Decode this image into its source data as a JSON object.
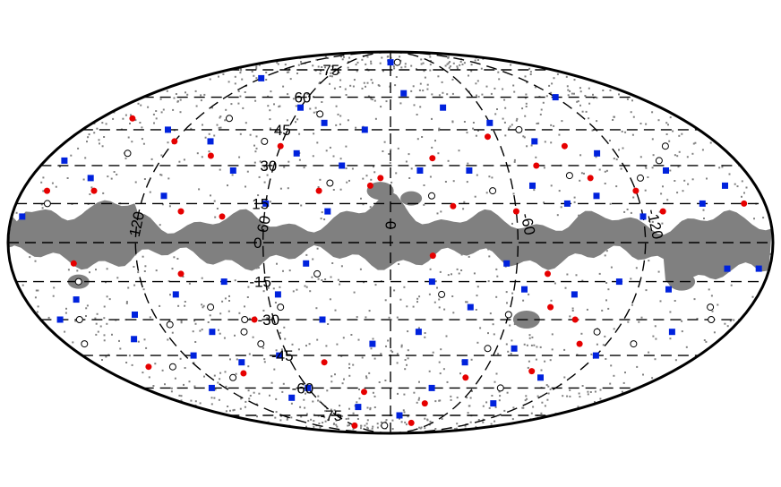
{
  "chart_data": {
    "type": "scatter",
    "projection": "mollweide",
    "coordinate_system": "galactic",
    "title": "",
    "longitude_labels": [
      "120",
      "60",
      "0",
      "-60",
      "-120"
    ],
    "latitude_labels": [
      "75",
      "60",
      "45",
      "30",
      "15",
      "0",
      "-15",
      "-30",
      "-45",
      "-60",
      "-75"
    ],
    "graticule": {
      "lon_step_deg": 60,
      "lat_step_deg": 15,
      "style": "dashed"
    },
    "mask": {
      "description": "galactic plane and masked sky regions",
      "color": "#808080"
    },
    "colors": {
      "mask": "#808080",
      "series_a": "#e60000",
      "series_b": "#0022dd",
      "series_c": "#000000"
    },
    "series": [
      {
        "marker": "filled-circle",
        "color": "#e60000",
        "points": [
          {
            "l": 160,
            "b": 50
          },
          {
            "l": 120,
            "b": 40
          },
          {
            "l": 95,
            "b": 34
          },
          {
            "l": 60,
            "b": 38
          },
          {
            "l": -22,
            "b": 33
          },
          {
            "l": -75,
            "b": 30
          },
          {
            "l": -100,
            "b": 25
          },
          {
            "l": -120,
            "b": 20
          },
          {
            "l": 35,
            "b": 20
          },
          {
            "l": 10,
            "b": 22
          },
          {
            "l": -30,
            "b": 14
          },
          {
            "l": -60,
            "b": 12
          },
          {
            "l": -130,
            "b": 12
          },
          {
            "l": 168,
            "b": 20
          },
          {
            "l": 145,
            "b": 20
          },
          {
            "l": 100,
            "b": 12
          },
          {
            "l": 80,
            "b": 10
          },
          {
            "l": 150,
            "b": -8
          },
          {
            "l": 100,
            "b": -12
          },
          {
            "l": -20,
            "b": -5
          },
          {
            "l": -75,
            "b": -12
          },
          {
            "l": -80,
            "b": -25
          },
          {
            "l": -95,
            "b": -30
          },
          {
            "l": -105,
            "b": -40
          },
          {
            "l": -90,
            "b": -52
          },
          {
            "l": -50,
            "b": -55
          },
          {
            "l": -30,
            "b": -68
          },
          {
            "l": 20,
            "b": -62
          },
          {
            "l": 40,
            "b": -48
          },
          {
            "l": 60,
            "b": -82
          },
          {
            "l": 95,
            "b": -53
          },
          {
            "l": 150,
            "b": -50
          },
          {
            "l": -30,
            "b": -80
          },
          {
            "l": 5,
            "b": 25
          },
          {
            "l": -170,
            "b": 15
          },
          {
            "l": -95,
            "b": 38
          },
          {
            "l": 70,
            "b": -30
          },
          {
            "l": -55,
            "b": 42
          }
        ]
      },
      {
        "marker": "filled-square",
        "color": "#0022dd",
        "points": [
          {
            "l": 120,
            "b": 70
          },
          {
            "l": 60,
            "b": 55
          },
          {
            "l": 40,
            "b": 48
          },
          {
            "l": 15,
            "b": 45
          },
          {
            "l": -10,
            "b": 62
          },
          {
            "l": -35,
            "b": 55
          },
          {
            "l": -60,
            "b": 48
          },
          {
            "l": -80,
            "b": 40
          },
          {
            "l": -110,
            "b": 35
          },
          {
            "l": -140,
            "b": 28
          },
          {
            "l": -165,
            "b": 22
          },
          {
            "l": 170,
            "b": 32
          },
          {
            "l": 130,
            "b": 45
          },
          {
            "l": 100,
            "b": 40
          },
          {
            "l": 80,
            "b": 28
          },
          {
            "l": 50,
            "b": 35
          },
          {
            "l": 25,
            "b": 30
          },
          {
            "l": -15,
            "b": 28
          },
          {
            "l": -40,
            "b": 28
          },
          {
            "l": -70,
            "b": 22
          },
          {
            "l": -100,
            "b": 18
          },
          {
            "l": -150,
            "b": 15
          },
          {
            "l": 150,
            "b": 25
          },
          {
            "l": 110,
            "b": 18
          },
          {
            "l": 60,
            "b": 15
          },
          {
            "l": 30,
            "b": 12
          },
          {
            "l": -85,
            "b": 15
          },
          {
            "l": -120,
            "b": 10
          },
          {
            "l": -160,
            "b": -10
          },
          {
            "l": -135,
            "b": -18
          },
          {
            "l": -110,
            "b": -15
          },
          {
            "l": -90,
            "b": -20
          },
          {
            "l": -65,
            "b": -18
          },
          {
            "l": -40,
            "b": -25
          },
          {
            "l": -15,
            "b": -35
          },
          {
            "l": 10,
            "b": -40
          },
          {
            "l": 35,
            "b": -30
          },
          {
            "l": 55,
            "b": -20
          },
          {
            "l": 80,
            "b": -15
          },
          {
            "l": 105,
            "b": -20
          },
          {
            "l": 130,
            "b": -28
          },
          {
            "l": 155,
            "b": -22
          },
          {
            "l": 170,
            "b": -30
          },
          {
            "l": 140,
            "b": -38
          },
          {
            "l": 115,
            "b": -45
          },
          {
            "l": 90,
            "b": -48
          },
          {
            "l": 65,
            "b": -45
          },
          {
            "l": -45,
            "b": -48
          },
          {
            "l": -70,
            "b": -42
          },
          {
            "l": -100,
            "b": -55
          },
          {
            "l": -120,
            "b": -45
          },
          {
            "l": -10,
            "b": -75
          },
          {
            "l": 30,
            "b": -70
          },
          {
            "l": 80,
            "b": -65
          },
          {
            "l": 130,
            "b": -60
          },
          {
            "l": -90,
            "b": -68
          },
          {
            "l": -150,
            "b": -35
          },
          {
            "l": -175,
            "b": -10
          },
          {
            "l": 0,
            "b": 80
          },
          {
            "l": -120,
            "b": 60
          },
          {
            "l": 175,
            "b": 10
          },
          {
            "l": -55,
            "b": -8
          },
          {
            "l": 40,
            "b": -8
          },
          {
            "l": -20,
            "b": -15
          },
          {
            "l": 95,
            "b": -35
          },
          {
            "l": 60,
            "b": -60
          },
          {
            "l": -30,
            "b": -60
          }
        ]
      },
      {
        "marker": "open-circle",
        "color": "#000000",
        "points": [
          {
            "l": -150,
            "b": 38
          },
          {
            "l": -140,
            "b": 32
          },
          {
            "l": -125,
            "b": 25
          },
          {
            "l": -90,
            "b": 26
          },
          {
            "l": -50,
            "b": 20
          },
          {
            "l": -20,
            "b": 18
          },
          {
            "l": 30,
            "b": 23
          },
          {
            "l": 70,
            "b": 40
          },
          {
            "l": 100,
            "b": 50
          },
          {
            "l": 140,
            "b": 35
          },
          {
            "l": 165,
            "b": 15
          },
          {
            "l": -160,
            "b": -25
          },
          {
            "l": -135,
            "b": -40
          },
          {
            "l": -110,
            "b": -35
          },
          {
            "l": -55,
            "b": -42
          },
          {
            "l": -25,
            "b": -20
          },
          {
            "l": 55,
            "b": -25
          },
          {
            "l": 75,
            "b": -30
          },
          {
            "l": 78,
            "b": -35
          },
          {
            "l": 72,
            "b": -40
          },
          {
            "l": 90,
            "b": -25
          },
          {
            "l": 115,
            "b": -32
          },
          {
            "l": 160,
            "b": -30
          },
          {
            "l": 170,
            "b": -40
          },
          {
            "l": -165,
            "b": -30
          },
          {
            "l": -80,
            "b": -60
          },
          {
            "l": 10,
            "b": -82
          },
          {
            "l": 150,
            "b": -15
          },
          {
            "l": -10,
            "b": 80
          },
          {
            "l": 45,
            "b": 52
          },
          {
            "l": -60,
            "b": -28
          },
          {
            "l": 105,
            "b": -55
          },
          {
            "l": 135,
            "b": -50
          },
          {
            "l": -75,
            "b": 45
          },
          {
            "l": 35,
            "b": -12
          }
        ]
      }
    ]
  }
}
